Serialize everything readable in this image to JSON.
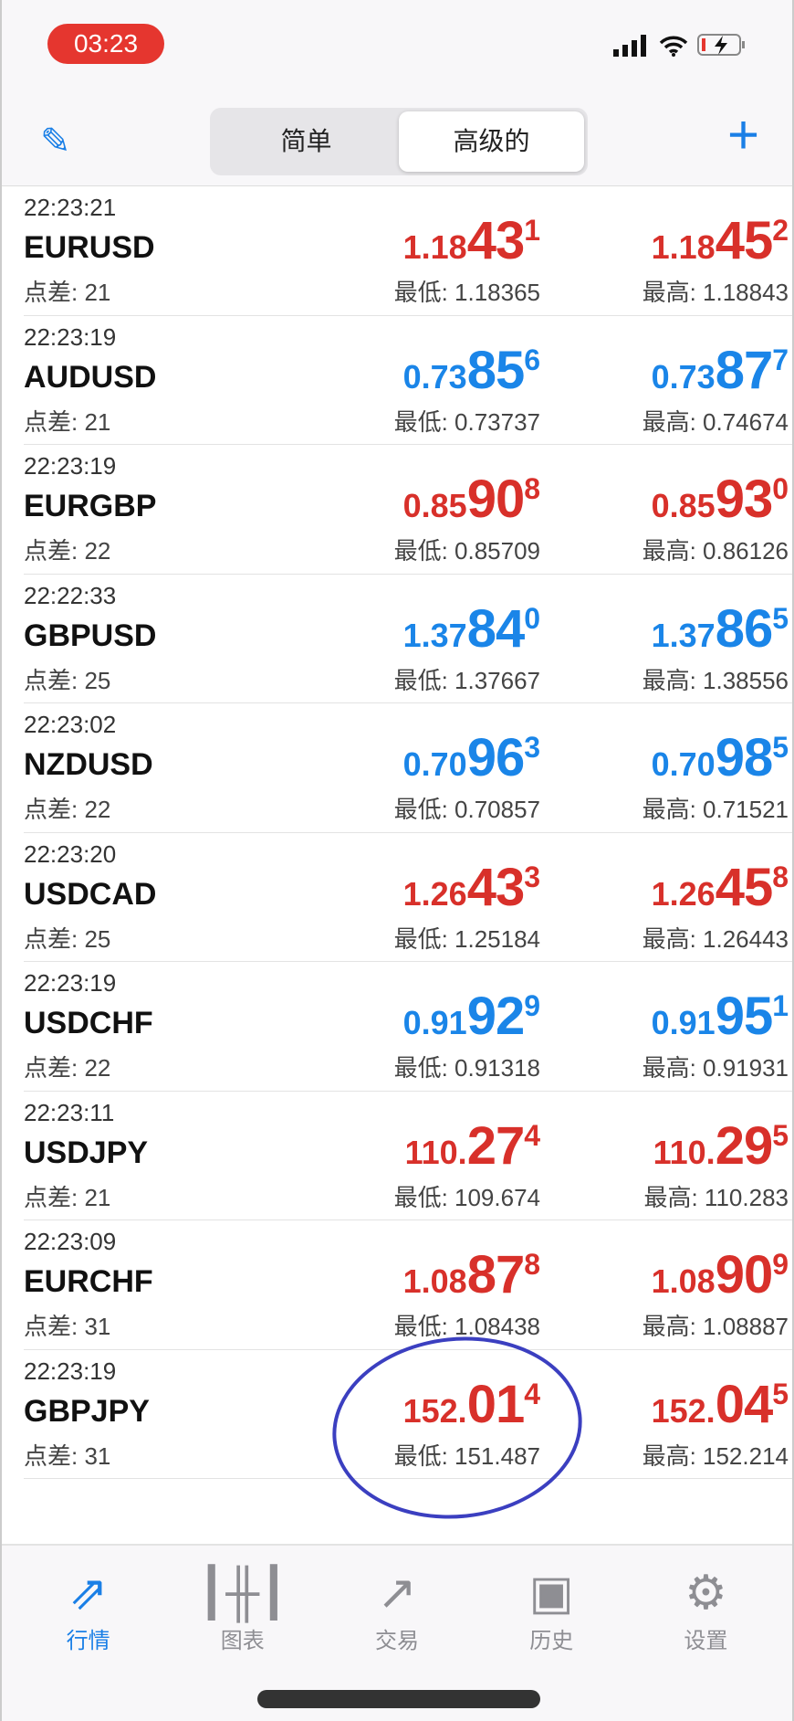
{
  "status": {
    "time": "03:23"
  },
  "header": {
    "segments": [
      "简单",
      "高级的"
    ],
    "active": 1,
    "edit_icon": "pencil-icon",
    "add_icon": "plus-icon"
  },
  "colors": {
    "up": "#1a85e8",
    "down": "#d8302a",
    "accent": "#1a7fe6",
    "annotation": "#3b3fc0"
  },
  "quotes": [
    {
      "time": "22:23:21",
      "symbol": "EURUSD",
      "spread": "点差: 21",
      "color": "red",
      "bid": [
        "1.18",
        "43",
        "1"
      ],
      "ask": [
        "1.18",
        "45",
        "2"
      ],
      "low": "最低: 1.18365",
      "high": "最高: 1.18843"
    },
    {
      "time": "22:23:19",
      "symbol": "AUDUSD",
      "spread": "点差: 21",
      "color": "blue",
      "bid": [
        "0.73",
        "85",
        "6"
      ],
      "ask": [
        "0.73",
        "87",
        "7"
      ],
      "low": "最低: 0.73737",
      "high": "最高: 0.74674"
    },
    {
      "time": "22:23:19",
      "symbol": "EURGBP",
      "spread": "点差: 22",
      "color": "red",
      "bid": [
        "0.85",
        "90",
        "8"
      ],
      "ask": [
        "0.85",
        "93",
        "0"
      ],
      "low": "最低: 0.85709",
      "high": "最高: 0.86126"
    },
    {
      "time": "22:22:33",
      "symbol": "GBPUSD",
      "spread": "点差: 25",
      "color": "blue",
      "bid": [
        "1.37",
        "84",
        "0"
      ],
      "ask": [
        "1.37",
        "86",
        "5"
      ],
      "low": "最低: 1.37667",
      "high": "最高: 1.38556"
    },
    {
      "time": "22:23:02",
      "symbol": "NZDUSD",
      "spread": "点差: 22",
      "color": "blue",
      "bid": [
        "0.70",
        "96",
        "3"
      ],
      "ask": [
        "0.70",
        "98",
        "5"
      ],
      "low": "最低: 0.70857",
      "high": "最高: 0.71521"
    },
    {
      "time": "22:23:20",
      "symbol": "USDCAD",
      "spread": "点差: 25",
      "color": "red",
      "bid": [
        "1.26",
        "43",
        "3"
      ],
      "ask": [
        "1.26",
        "45",
        "8"
      ],
      "low": "最低: 1.25184",
      "high": "最高: 1.26443"
    },
    {
      "time": "22:23:19",
      "symbol": "USDCHF",
      "spread": "点差: 22",
      "color": "blue",
      "bid": [
        "0.91",
        "92",
        "9"
      ],
      "ask": [
        "0.91",
        "95",
        "1"
      ],
      "low": "最低: 0.91318",
      "high": "最高: 0.91931"
    },
    {
      "time": "22:23:11",
      "symbol": "USDJPY",
      "spread": "点差: 21",
      "color": "red",
      "bid": [
        "110.",
        "27",
        "4"
      ],
      "ask": [
        "110.",
        "29",
        "5"
      ],
      "low": "最低: 109.674",
      "high": "最高: 110.283"
    },
    {
      "time": "22:23:09",
      "symbol": "EURCHF",
      "spread": "点差: 31",
      "color": "red",
      "bid": [
        "1.08",
        "87",
        "8"
      ],
      "ask": [
        "1.08",
        "90",
        "9"
      ],
      "low": "最低: 1.08438",
      "high": "最高: 1.08887"
    },
    {
      "time": "22:23:19",
      "symbol": "GBPJPY",
      "spread": "点差: 31",
      "color": "red",
      "bid": [
        "152.",
        "01",
        "4"
      ],
      "ask": [
        "152.",
        "04",
        "5"
      ],
      "low": "最低: 151.487",
      "high": "最高: 152.214"
    }
  ],
  "tabs": [
    {
      "label": "行情",
      "icon": "quotes-arrows-icon",
      "active": true
    },
    {
      "label": "图表",
      "icon": "candlestick-chart-icon"
    },
    {
      "label": "交易",
      "icon": "trade-trend-icon"
    },
    {
      "label": "历史",
      "icon": "history-tray-icon"
    },
    {
      "label": "设置",
      "icon": "gear-icon"
    }
  ]
}
